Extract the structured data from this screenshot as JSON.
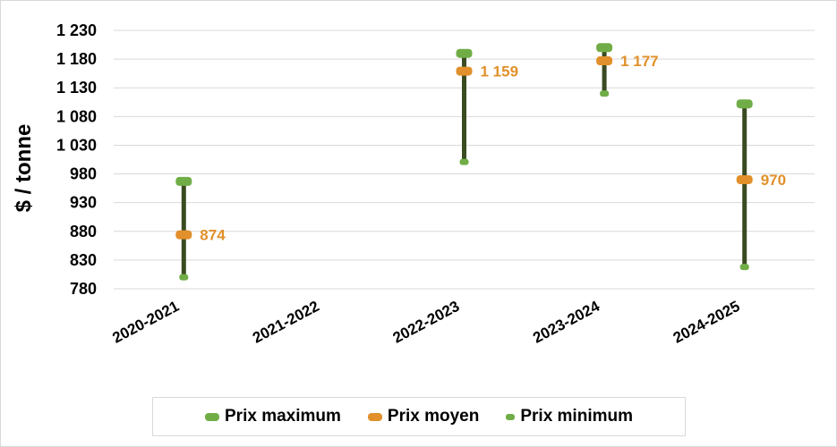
{
  "chart_data": {
    "type": "range",
    "title": "",
    "xlabel": "",
    "ylabel": "$ / tonne",
    "ylim": [
      780,
      1230
    ],
    "yticks": [
      780,
      830,
      880,
      930,
      980,
      1030,
      1080,
      1130,
      1180,
      1230
    ],
    "ytick_labels": [
      "780",
      "830",
      "880",
      "930",
      "980",
      "1 030",
      "1 080",
      "1 130",
      "1 180",
      "1 230"
    ],
    "categories": [
      "2020-2021",
      "2021-2022",
      "2022-2023",
      "2023-2024",
      "2024-2025"
    ],
    "series": [
      {
        "name": "Prix maximum",
        "values": [
          967,
          null,
          1190,
          1200,
          1102
        ]
      },
      {
        "name": "Prix moyen",
        "values": [
          874,
          null,
          1159,
          1177,
          970
        ]
      },
      {
        "name": "Prix minimum",
        "values": [
          800,
          null,
          1001,
          1120,
          818
        ]
      }
    ],
    "data_labels": [
      "874",
      "",
      "1 159",
      "1 177",
      "970"
    ],
    "grid": true,
    "legend_position": "bottom",
    "colors": {
      "max": "#70ad47",
      "mean": "#e1902b",
      "min": "#70ad47",
      "range_line": "#3b4b21",
      "grid": "#d9d9d9"
    }
  },
  "legend": {
    "max_label": "Prix maximum",
    "mean_label": "Prix moyen",
    "min_label": "Prix minimum"
  }
}
